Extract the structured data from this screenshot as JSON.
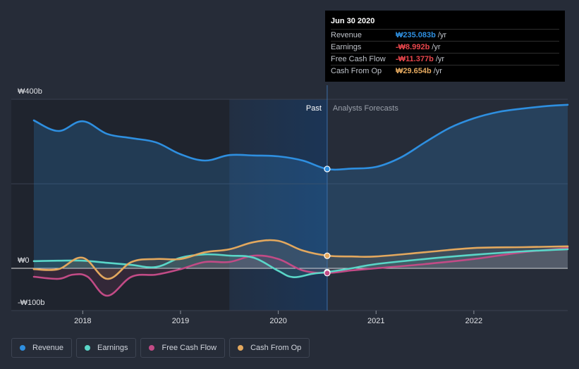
{
  "colors": {
    "revenue": "#2e8fe0",
    "earnings": "#5ad6c8",
    "free_cash_flow": "#c24b86",
    "cash_from_op": "#e3a85e",
    "background": "#262c38",
    "past_highlight": "#1b3556",
    "negative": "#e8464c"
  },
  "tooltip": {
    "date": "Jun 30 2020",
    "rows": [
      {
        "label": "Revenue",
        "value": "₩235.083b",
        "unit": "/yr",
        "color": "#2e8fe0"
      },
      {
        "label": "Earnings",
        "value": "-₩8.992b",
        "unit": "/yr",
        "color": "#e8464c"
      },
      {
        "label": "Free Cash Flow",
        "value": "-₩11.377b",
        "unit": "/yr",
        "color": "#e8464c"
      },
      {
        "label": "Cash From Op",
        "value": "₩29.654b",
        "unit": "/yr",
        "color": "#e3a85e"
      }
    ]
  },
  "legend": [
    {
      "label": "Revenue",
      "color": "#2e8fe0"
    },
    {
      "label": "Earnings",
      "color": "#5ad6c8"
    },
    {
      "label": "Free Cash Flow",
      "color": "#c24b86"
    },
    {
      "label": "Cash From Op",
      "color": "#e3a85e"
    }
  ],
  "chart_data": {
    "type": "line",
    "title": "",
    "xlabel": "",
    "ylabel": "",
    "ylim": [
      -100,
      400
    ],
    "xlim": [
      2017.5,
      2022.96
    ],
    "y_tick_labels": [
      {
        "value": 400,
        "label": "₩400b"
      },
      {
        "value": 0,
        "label": "₩0"
      },
      {
        "value": -100,
        "label": "-₩100b"
      }
    ],
    "x_tick_labels": [
      {
        "value": 2018,
        "label": "2018"
      },
      {
        "value": 2019,
        "label": "2019"
      },
      {
        "value": 2020,
        "label": "2020"
      },
      {
        "value": 2021,
        "label": "2021"
      },
      {
        "value": 2022,
        "label": "2022"
      }
    ],
    "divider_x": 2020.5,
    "past_label": "Past",
    "forecast_label": "Analysts Forecasts",
    "past_highlight_start": 2019.5,
    "series": [
      {
        "name": "Revenue",
        "key": "revenue",
        "points": [
          [
            2017.5,
            350
          ],
          [
            2017.75,
            325
          ],
          [
            2018.0,
            348
          ],
          [
            2018.25,
            318
          ],
          [
            2018.5,
            308
          ],
          [
            2018.75,
            298
          ],
          [
            2019.0,
            270
          ],
          [
            2019.25,
            255
          ],
          [
            2019.5,
            268
          ],
          [
            2019.75,
            267
          ],
          [
            2020.0,
            265
          ],
          [
            2020.25,
            255
          ],
          [
            2020.5,
            235
          ],
          [
            2020.75,
            236
          ],
          [
            2021.0,
            240
          ],
          [
            2021.25,
            262
          ],
          [
            2021.5,
            298
          ],
          [
            2021.75,
            332
          ],
          [
            2022.0,
            355
          ],
          [
            2022.25,
            370
          ],
          [
            2022.5,
            378
          ],
          [
            2022.75,
            384
          ],
          [
            2022.96,
            387
          ]
        ]
      },
      {
        "name": "Earnings",
        "key": "earnings",
        "points": [
          [
            2017.5,
            17
          ],
          [
            2017.75,
            18
          ],
          [
            2018.0,
            18
          ],
          [
            2018.25,
            13
          ],
          [
            2018.5,
            8
          ],
          [
            2018.75,
            3
          ],
          [
            2019.0,
            25
          ],
          [
            2019.25,
            33
          ],
          [
            2019.5,
            30
          ],
          [
            2019.75,
            25
          ],
          [
            2020.0,
            -6
          ],
          [
            2020.15,
            -21
          ],
          [
            2020.35,
            -13
          ],
          [
            2020.5,
            -9
          ],
          [
            2020.75,
            0
          ],
          [
            2021.0,
            10
          ],
          [
            2021.5,
            22
          ],
          [
            2022.0,
            32
          ],
          [
            2022.5,
            40
          ],
          [
            2022.96,
            45
          ]
        ]
      },
      {
        "name": "Free Cash Flow",
        "key": "free_cash_flow",
        "points": [
          [
            2017.5,
            -20
          ],
          [
            2017.75,
            -25
          ],
          [
            2017.9,
            -15
          ],
          [
            2018.05,
            -20
          ],
          [
            2018.25,
            -65
          ],
          [
            2018.5,
            -20
          ],
          [
            2018.75,
            -15
          ],
          [
            2019.0,
            -2
          ],
          [
            2019.25,
            15
          ],
          [
            2019.5,
            15
          ],
          [
            2019.75,
            30
          ],
          [
            2020.0,
            22
          ],
          [
            2020.25,
            -5
          ],
          [
            2020.5,
            -11
          ],
          [
            2020.75,
            -5
          ],
          [
            2021.0,
            0
          ],
          [
            2021.5,
            10
          ],
          [
            2022.0,
            22
          ],
          [
            2022.5,
            38
          ],
          [
            2022.96,
            48
          ]
        ]
      },
      {
        "name": "Cash From Op",
        "key": "cash_from_op",
        "points": [
          [
            2017.5,
            -2
          ],
          [
            2017.75,
            -2
          ],
          [
            2018.0,
            25
          ],
          [
            2018.25,
            -25
          ],
          [
            2018.5,
            15
          ],
          [
            2018.75,
            22
          ],
          [
            2019.0,
            22
          ],
          [
            2019.25,
            38
          ],
          [
            2019.5,
            45
          ],
          [
            2019.75,
            62
          ],
          [
            2020.0,
            65
          ],
          [
            2020.25,
            42
          ],
          [
            2020.5,
            30
          ],
          [
            2020.75,
            28
          ],
          [
            2021.0,
            28
          ],
          [
            2021.5,
            38
          ],
          [
            2022.0,
            48
          ],
          [
            2022.5,
            50
          ],
          [
            2022.96,
            52
          ]
        ]
      }
    ],
    "highlight_markers": [
      {
        "series": "revenue",
        "x": 2020.5,
        "y": 235.083
      },
      {
        "series": "earnings",
        "x": 2020.5,
        "y": -8.992
      },
      {
        "series": "free_cash_flow",
        "x": 2020.5,
        "y": -11.377
      },
      {
        "series": "cash_from_op",
        "x": 2020.5,
        "y": 29.654
      }
    ]
  }
}
